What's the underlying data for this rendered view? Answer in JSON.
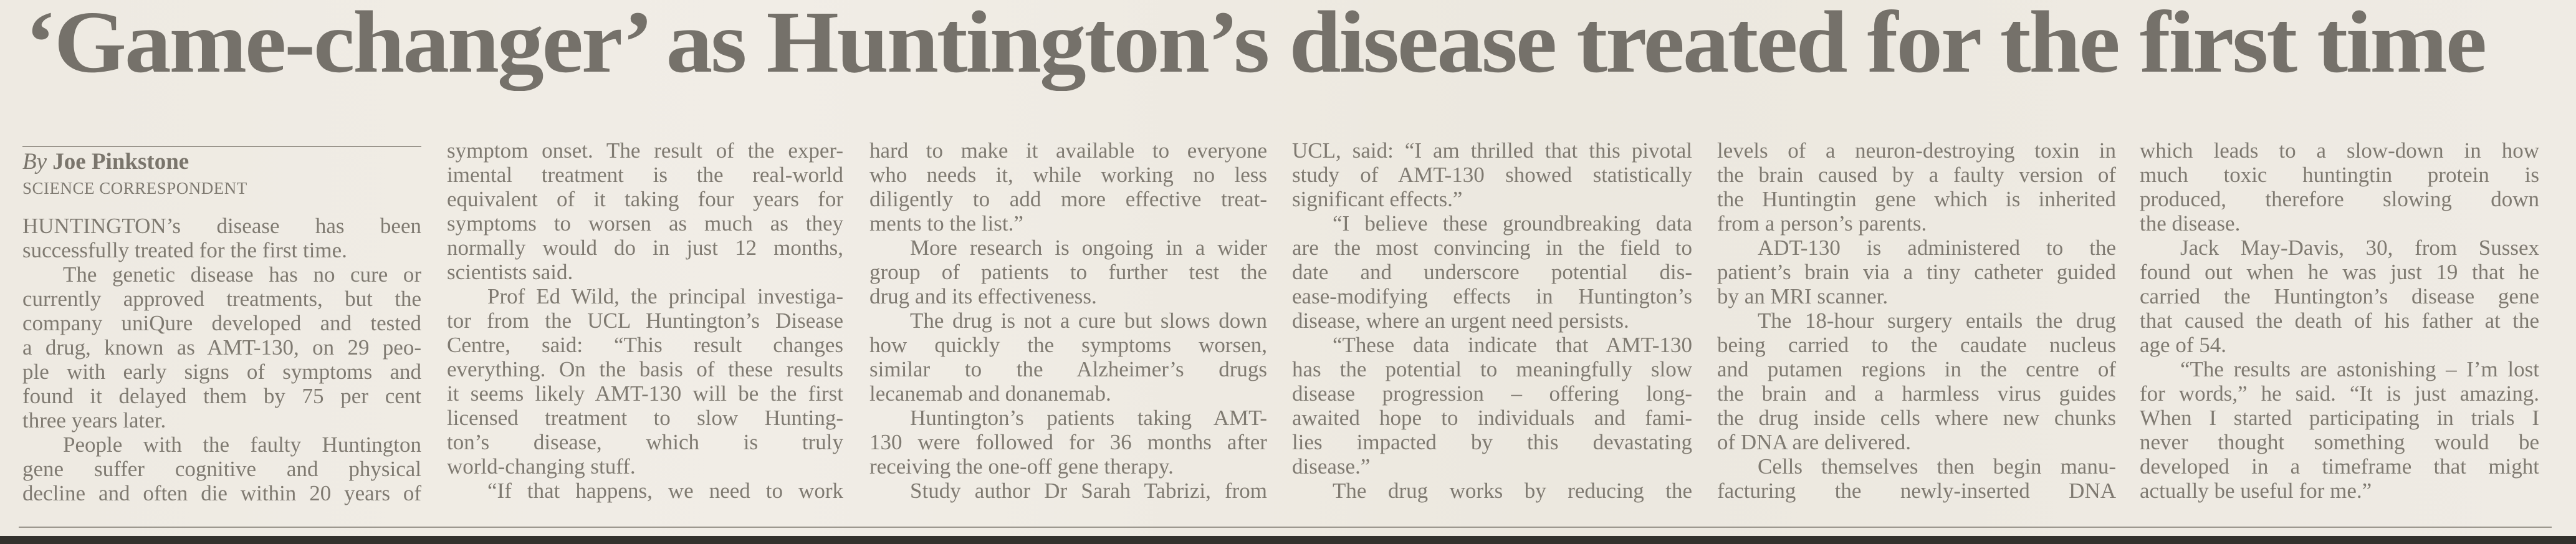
{
  "article": {
    "headline": "‘Game-changer’ as Huntington’s disease treated for the first time",
    "byline_prefix": "By",
    "author": "Joe Pinkstone",
    "role": "SCIENCE CORRESPONDENT",
    "columns": [
      {
        "paragraphs": [
          {
            "cont": true,
            "runs_on": false,
            "lines": [
              "HUNTINGTON’s disease has been",
              "successfully treated for the first time."
            ]
          },
          {
            "cont": false,
            "runs_on": false,
            "lines": [
              "The genetic disease has no cure or",
              "currently approved treatments, but the",
              "company uniQure developed and tested",
              "a drug, known as AMT-130, on 29 peo-",
              "ple with early signs of symptoms and",
              "found it delayed them by 75 per cent",
              "three years later."
            ]
          },
          {
            "cont": false,
            "runs_on": true,
            "lines": [
              "People with the faulty Huntington",
              "gene suffer cognitive and physical",
              "decline and often die within 20 years of"
            ]
          }
        ]
      },
      {
        "paragraphs": [
          {
            "cont": true,
            "runs_on": false,
            "lines": [
              "symptom onset. The result of the exper-",
              "imental treatment is the real-world",
              "equivalent of it taking four years for",
              "symptoms to worsen as much as they",
              "normally would do in just 12 months,",
              "scientists said."
            ]
          },
          {
            "cont": false,
            "runs_on": false,
            "lines": [
              "Prof Ed Wild, the principal investiga-",
              "tor from the UCL Huntington’s Disease",
              "Centre, said: “This result changes",
              "everything. On the basis of these results",
              "it seems likely AMT-130 will be the first",
              "licensed treatment to slow Hunting-",
              "ton’s disease, which is truly",
              "world-changing stuff."
            ]
          },
          {
            "cont": false,
            "runs_on": true,
            "lines": [
              "“If that happens, we need to work"
            ]
          }
        ]
      },
      {
        "paragraphs": [
          {
            "cont": true,
            "runs_on": false,
            "lines": [
              "hard to make it available to everyone",
              "who needs it, while working no less",
              "diligently to add more effective treat-",
              "ments to the list.”"
            ]
          },
          {
            "cont": false,
            "runs_on": false,
            "lines": [
              "More research is ongoing in a wider",
              "group of patients to further test the",
              "drug and its effectiveness."
            ]
          },
          {
            "cont": false,
            "runs_on": false,
            "lines": [
              "The drug is not a cure but slows down",
              "how quickly the symptoms worsen,",
              "similar to the Alzheimer’s drugs",
              "lecanemab and donanemab."
            ]
          },
          {
            "cont": false,
            "runs_on": false,
            "lines": [
              "Huntington’s patients taking AMT-",
              "130 were followed for 36 months after",
              "receiving the one-off gene therapy."
            ]
          },
          {
            "cont": false,
            "runs_on": true,
            "lines": [
              "Study author Dr Sarah Tabrizi, from"
            ]
          }
        ]
      },
      {
        "paragraphs": [
          {
            "cont": true,
            "runs_on": false,
            "lines": [
              "UCL, said: “I am thrilled that this pivotal",
              "study of AMT-130 showed statistically",
              "significant effects.”"
            ]
          },
          {
            "cont": false,
            "runs_on": false,
            "lines": [
              "“I believe these groundbreaking data",
              "are the most convincing in the field to",
              "date and underscore potential dis-",
              "ease-modifying effects in Huntington’s",
              "disease, where an urgent need persists."
            ]
          },
          {
            "cont": false,
            "runs_on": false,
            "lines": [
              "“These data indicate that AMT-130",
              "has the potential to meaningfully slow",
              "disease progression – offering long-",
              "awaited hope to individuals and fami-",
              "lies impacted by this devastating",
              "disease.”"
            ]
          },
          {
            "cont": false,
            "runs_on": true,
            "lines": [
              "The drug works by reducing the"
            ]
          }
        ]
      },
      {
        "paragraphs": [
          {
            "cont": true,
            "runs_on": false,
            "lines": [
              "levels of a neuron-destroying toxin in",
              "the brain caused by a faulty version of",
              "the Huntingtin gene which is inherited",
              "from a person’s parents."
            ]
          },
          {
            "cont": false,
            "runs_on": false,
            "lines": [
              "ADT-130 is administered to the",
              "patient’s brain via a tiny catheter guided",
              "by an MRI scanner."
            ]
          },
          {
            "cont": false,
            "runs_on": false,
            "lines": [
              "The 18-hour surgery entails the drug",
              "being carried to the caudate nucleus",
              "and putamen regions in the centre of",
              "the brain and a harmless virus guides",
              "the drug inside cells where new chunks",
              "of DNA are delivered."
            ]
          },
          {
            "cont": false,
            "runs_on": true,
            "lines": [
              "Cells themselves then begin manu-",
              "facturing the newly-inserted DNA"
            ]
          }
        ]
      },
      {
        "paragraphs": [
          {
            "cont": true,
            "runs_on": false,
            "lines": [
              "which leads to a slow-down in how",
              "much toxic huntingtin protein is",
              "produced, therefore slowing down",
              "the disease."
            ]
          },
          {
            "cont": false,
            "runs_on": false,
            "lines": [
              "Jack May-Davis, 30, from Sussex",
              "found out when he was just 19 that he",
              "carried the Huntington’s disease gene",
              "that caused the death of his father at the",
              "age of 54."
            ]
          },
          {
            "cont": false,
            "runs_on": false,
            "lines": [
              "“The results are astonishing – I’m lost",
              "for words,” he said. “It is just amazing.",
              "When I started participating in trials I",
              "never thought something would be",
              "developed in a timeframe that might",
              "actually be useful for me.”"
            ]
          }
        ]
      }
    ]
  }
}
